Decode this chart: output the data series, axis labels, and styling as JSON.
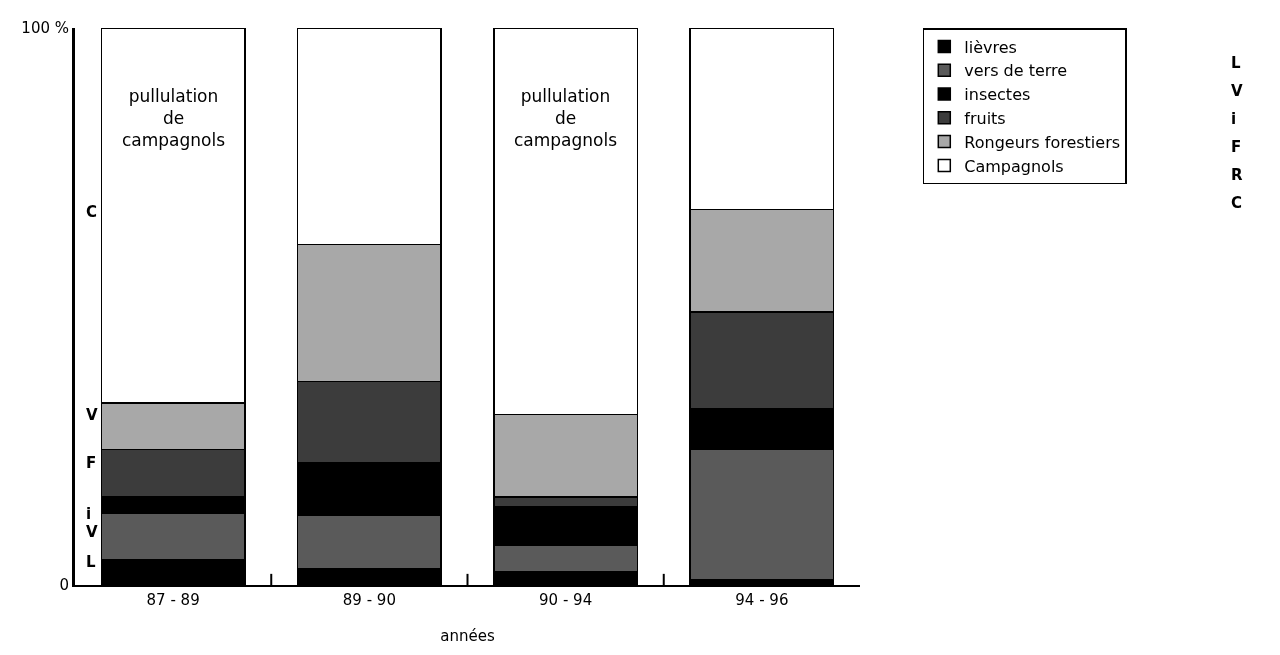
{
  "chart_data": {
    "type": "bar",
    "stacked": true,
    "xlabel": "années",
    "categories": [
      "87 - 89",
      "89 - 90",
      "90 - 94",
      "94 - 96"
    ],
    "series": [
      {
        "name": "lièvres",
        "color": "#000000",
        "values": [
          4.6,
          3,
          2.4,
          1
        ]
      },
      {
        "name": "vers de terre",
        "color": "#5a5a5a",
        "values": [
          8.2,
          9.6,
          4.7,
          23.4
        ]
      },
      {
        "name": "insectes",
        "color": "#000000",
        "values": [
          3.1,
          9.3,
          6.9,
          7.3
        ]
      },
      {
        "name": "fruits",
        "color": "#3c3c3c",
        "values": [
          8.4,
          14.6,
          1.8,
          17.3
        ]
      },
      {
        "name": "Rongeurs forestiers",
        "color": "#a8a8a8",
        "values": [
          8.4,
          24.6,
          14.8,
          18.4
        ]
      },
      {
        "name": "Campagnols",
        "color": "#ffffff",
        "values": [
          67.3,
          38.9,
          69.4,
          32.6
        ]
      }
    ],
    "ylim": [
      0,
      100
    ],
    "yticks": [
      0,
      {
        "value": 100,
        "label": "100 %"
      }
    ],
    "legend": "top right",
    "annotations": [
      "pullulation de campagnols",
      "pullulation de campagnols",
      "C",
      "V",
      "F",
      "i",
      "V",
      "L",
      "L",
      "V",
      "i",
      "F",
      "R",
      "C"
    ]
  }
}
